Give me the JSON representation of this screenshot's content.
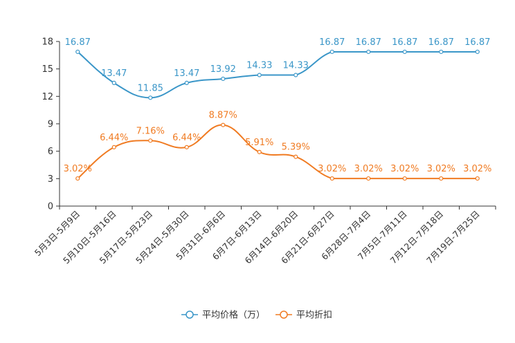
{
  "chart_data": {
    "type": "line",
    "title": "",
    "xlabel": "",
    "ylabel": "",
    "ylim": [
      0,
      18
    ],
    "yticks": [
      "0",
      "3",
      "6",
      "9",
      "12",
      "15",
      "18"
    ],
    "categories": [
      "5月3日-5月9日",
      "5月10日-5月16日",
      "5月17日-5月23日",
      "5月24日-5月30日",
      "5月31日-6月6日",
      "6月7日-6月13日",
      "6月14日-6月20日",
      "6月21日-6月27日",
      "6月28日-7月4日",
      "7月5日-7月11日",
      "7月12日-7月18日",
      "7月19日-7月25日"
    ],
    "series": [
      {
        "name": "平均价格（万）",
        "color": "#3a96c8",
        "values": [
          16.87,
          13.47,
          11.85,
          13.47,
          13.92,
          14.33,
          14.33,
          16.87,
          16.87,
          16.87,
          16.87,
          16.87
        ],
        "labels": [
          "16.87",
          "13.47",
          "11.85",
          "13.47",
          "13.92",
          "14.33",
          "14.33",
          "16.87",
          "16.87",
          "16.87",
          "16.87",
          "16.87"
        ]
      },
      {
        "name": "平均折扣",
        "color": "#f07b22",
        "values": [
          3.02,
          6.44,
          7.16,
          6.44,
          8.87,
          5.91,
          5.39,
          3.02,
          3.02,
          3.02,
          3.02,
          3.02
        ],
        "labels": [
          "3.02%",
          "6.44%",
          "7.16%",
          "6.44%",
          "8.87%",
          "5.91%",
          "5.39%",
          "3.02%",
          "3.02%",
          "3.02%",
          "3.02%",
          "3.02%"
        ]
      }
    ],
    "legend_position": "bottom-center"
  }
}
